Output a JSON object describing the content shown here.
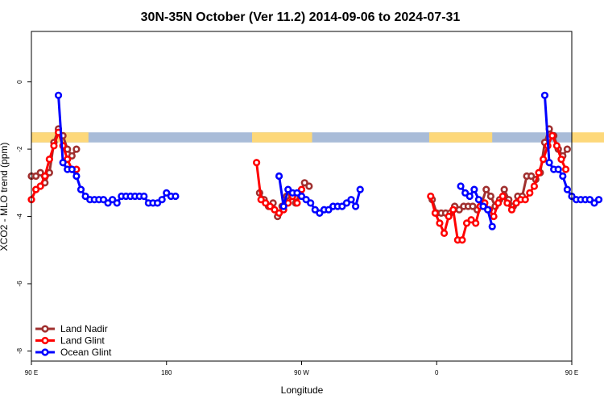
{
  "chart_data": {
    "type": "line",
    "title": "30N-35N October (Ver 11.2)   2014-09-06 to 2024-07-31",
    "xlabel": "Longitude",
    "ylabel": "XCO2 - MLO trend (ppm)",
    "xlim": [
      90,
      450
    ],
    "ylim": [
      -8.3,
      1.5
    ],
    "x_ticks": [
      {
        "value": 90,
        "label": "90 E"
      },
      {
        "value": 180,
        "label": "180"
      },
      {
        "value": 270,
        "label": "90 W"
      },
      {
        "value": 360,
        "label": "0"
      },
      {
        "value": 450,
        "label": "90 E"
      },
      {
        "value": 540,
        "label": "180"
      }
    ],
    "y_ticks": [
      {
        "value": 0,
        "label": "0"
      },
      {
        "value": -2,
        "label": "-2"
      },
      {
        "value": -4,
        "label": "-4"
      },
      {
        "value": -6,
        "label": "-6"
      },
      {
        "value": -8,
        "label": "-8"
      }
    ],
    "grid": false,
    "legend_position": "bottom-left",
    "land_mask_band": {
      "y_range": [
        -1.8,
        -1.5
      ],
      "land_color": "#fdd87a",
      "ocean_color": "#a9bcd8",
      "land_segments": [
        [
          90,
          128
        ],
        [
          237,
          277
        ],
        [
          355,
          397
        ],
        [
          450,
          488
        ]
      ]
    },
    "series": [
      {
        "name": "Land Nadir",
        "color": "#a0302f",
        "points": [
          [
            90,
            -2.8
          ],
          [
            93,
            -2.8
          ],
          [
            96,
            -2.7
          ],
          [
            99,
            -3.0
          ],
          [
            102,
            -2.7
          ],
          [
            105,
            -1.8
          ],
          [
            108,
            -1.4
          ],
          [
            111,
            -1.6
          ],
          [
            114,
            -2.0
          ],
          [
            117,
            -2.2
          ],
          [
            120,
            -2.0
          ],
          [
            242,
            -3.3
          ],
          [
            245,
            -3.5
          ],
          [
            248,
            -3.7
          ],
          [
            251,
            -3.6
          ],
          [
            254,
            -4.0
          ],
          [
            257,
            -3.7
          ],
          [
            260,
            -3.4
          ],
          [
            263,
            -3.3
          ],
          [
            266,
            -3.6
          ],
          [
            269,
            -3.3
          ],
          [
            272,
            -3.0
          ],
          [
            275,
            -3.1
          ],
          [
            357,
            -3.5
          ],
          [
            360,
            -3.9
          ],
          [
            363,
            -3.9
          ],
          [
            366,
            -3.9
          ],
          [
            369,
            -3.9
          ],
          [
            372,
            -3.7
          ],
          [
            375,
            -3.8
          ],
          [
            378,
            -3.7
          ],
          [
            381,
            -3.7
          ],
          [
            384,
            -3.7
          ],
          [
            387,
            -3.8
          ],
          [
            390,
            -3.6
          ],
          [
            393,
            -3.2
          ],
          [
            396,
            -3.4
          ],
          [
            399,
            -3.7
          ],
          [
            402,
            -3.5
          ],
          [
            405,
            -3.2
          ],
          [
            408,
            -3.5
          ],
          [
            411,
            -3.7
          ],
          [
            414,
            -3.4
          ],
          [
            417,
            -3.4
          ],
          [
            420,
            -2.8
          ],
          [
            423,
            -2.8
          ],
          [
            426,
            -2.9
          ],
          [
            429,
            -2.7
          ],
          [
            432,
            -1.8
          ],
          [
            435,
            -1.4
          ],
          [
            438,
            -1.6
          ],
          [
            441,
            -2.0
          ],
          [
            444,
            -2.2
          ],
          [
            447,
            -2.0
          ]
        ]
      },
      {
        "name": "Land Glint",
        "color": "#ff0000",
        "points": [
          [
            90,
            -3.5
          ],
          [
            93,
            -3.2
          ],
          [
            96,
            -3.1
          ],
          [
            99,
            -2.8
          ],
          [
            102,
            -2.3
          ],
          [
            105,
            -1.9
          ],
          [
            108,
            -1.5
          ],
          [
            111,
            -1.9
          ],
          [
            114,
            -2.3
          ],
          [
            117,
            -2.6
          ],
          [
            120,
            -2.6
          ],
          [
            240,
            -2.4
          ],
          [
            243,
            -3.5
          ],
          [
            246,
            -3.6
          ],
          [
            249,
            -3.7
          ],
          [
            252,
            -3.8
          ],
          [
            255,
            -3.9
          ],
          [
            258,
            -3.8
          ],
          [
            261,
            -3.6
          ],
          [
            264,
            -3.4
          ],
          [
            267,
            -3.6
          ],
          [
            270,
            -3.2
          ],
          [
            356,
            -3.4
          ],
          [
            359,
            -3.9
          ],
          [
            362,
            -4.2
          ],
          [
            365,
            -4.5
          ],
          [
            368,
            -4.0
          ],
          [
            371,
            -3.8
          ],
          [
            374,
            -4.7
          ],
          [
            377,
            -4.7
          ],
          [
            380,
            -4.2
          ],
          [
            383,
            -4.1
          ],
          [
            386,
            -4.2
          ],
          [
            389,
            -3.7
          ],
          [
            392,
            -3.6
          ],
          [
            395,
            -3.8
          ],
          [
            398,
            -4.0
          ],
          [
            401,
            -3.6
          ],
          [
            404,
            -3.4
          ],
          [
            407,
            -3.6
          ],
          [
            410,
            -3.8
          ],
          [
            413,
            -3.6
          ],
          [
            416,
            -3.5
          ],
          [
            419,
            -3.5
          ],
          [
            422,
            -3.3
          ],
          [
            425,
            -3.1
          ],
          [
            428,
            -2.7
          ],
          [
            431,
            -2.3
          ],
          [
            434,
            -1.9
          ],
          [
            437,
            -1.6
          ],
          [
            440,
            -1.9
          ],
          [
            443,
            -2.3
          ],
          [
            446,
            -2.6
          ]
        ]
      },
      {
        "name": "Ocean Glint",
        "color": "#0000ff",
        "points": [
          [
            108,
            -0.4
          ],
          [
            111,
            -2.4
          ],
          [
            114,
            -2.6
          ],
          [
            117,
            -2.6
          ],
          [
            120,
            -2.8
          ],
          [
            123,
            -3.2
          ],
          [
            126,
            -3.4
          ],
          [
            129,
            -3.5
          ],
          [
            132,
            -3.5
          ],
          [
            135,
            -3.5
          ],
          [
            138,
            -3.5
          ],
          [
            141,
            -3.6
          ],
          [
            144,
            -3.5
          ],
          [
            147,
            -3.6
          ],
          [
            150,
            -3.4
          ],
          [
            153,
            -3.4
          ],
          [
            156,
            -3.4
          ],
          [
            159,
            -3.4
          ],
          [
            162,
            -3.4
          ],
          [
            165,
            -3.4
          ],
          [
            168,
            -3.6
          ],
          [
            171,
            -3.6
          ],
          [
            174,
            -3.6
          ],
          [
            177,
            -3.5
          ],
          [
            180,
            -3.3
          ],
          [
            183,
            -3.4
          ],
          [
            186,
            -3.4
          ],
          [
            255,
            -2.8
          ],
          [
            258,
            -3.7
          ],
          [
            261,
            -3.2
          ],
          [
            264,
            -3.3
          ],
          [
            267,
            -3.3
          ],
          [
            270,
            -3.4
          ],
          [
            273,
            -3.5
          ],
          [
            276,
            -3.6
          ],
          [
            279,
            -3.8
          ],
          [
            282,
            -3.9
          ],
          [
            285,
            -3.8
          ],
          [
            288,
            -3.8
          ],
          [
            291,
            -3.7
          ],
          [
            294,
            -3.7
          ],
          [
            297,
            -3.7
          ],
          [
            300,
            -3.6
          ],
          [
            303,
            -3.5
          ],
          [
            306,
            -3.7
          ],
          [
            309,
            -3.2
          ],
          [
            376,
            -3.1
          ],
          [
            379,
            -3.3
          ],
          [
            382,
            -3.4
          ],
          [
            385,
            -3.2
          ],
          [
            388,
            -3.5
          ],
          [
            391,
            -3.7
          ],
          [
            394,
            -3.8
          ],
          [
            397,
            -4.3
          ],
          [
            432,
            -0.4
          ],
          [
            435,
            -2.4
          ],
          [
            438,
            -2.6
          ],
          [
            441,
            -2.6
          ],
          [
            444,
            -2.8
          ],
          [
            447,
            -3.2
          ],
          [
            450,
            -3.4
          ],
          [
            453,
            -3.5
          ],
          [
            456,
            -3.5
          ],
          [
            459,
            -3.5
          ],
          [
            462,
            -3.5
          ],
          [
            465,
            -3.6
          ],
          [
            468,
            -3.5
          ]
        ]
      }
    ]
  }
}
